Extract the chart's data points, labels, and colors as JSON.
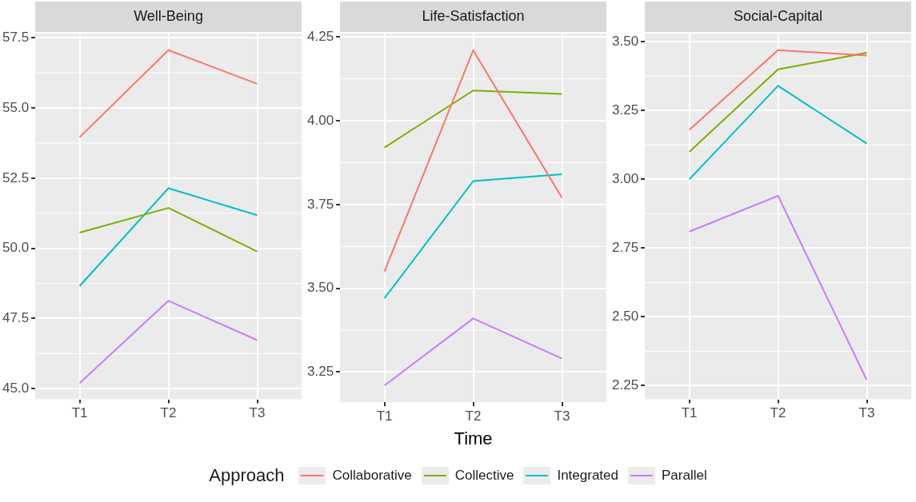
{
  "chart_data": [
    {
      "type": "line",
      "title": "Well-Being",
      "categories": [
        "T1",
        "T2",
        "T3"
      ],
      "ylim": [
        44.62,
        57.65
      ],
      "yticks": [
        {
          "value": 45,
          "label": "45.0"
        },
        {
          "value": 47.5,
          "label": "47.5"
        },
        {
          "value": 50,
          "label": "50.0"
        },
        {
          "value": 52.5,
          "label": "52.5"
        },
        {
          "value": 55,
          "label": "55.0"
        },
        {
          "value": 57.5,
          "label": "57.5"
        }
      ],
      "grid": true,
      "marker": "none",
      "legend": "bottom",
      "legend_title": "Approach",
      "series": [
        {
          "name": "Collaborative",
          "color": "#f8766d",
          "values": [
            53.96,
            57.06,
            55.86
          ]
        },
        {
          "name": "Collective",
          "color": "#7cae00",
          "values": [
            50.56,
            51.44,
            49.89
          ]
        },
        {
          "name": "Integrated",
          "color": "#00bfc4",
          "values": [
            48.66,
            52.14,
            51.18
          ]
        },
        {
          "name": "Parallel",
          "color": "#c77cff",
          "values": [
            45.2,
            48.13,
            46.73
          ]
        }
      ]
    },
    {
      "type": "line",
      "title": "Life-Satisfaction",
      "xlabel": "Time",
      "categories": [
        "T1",
        "T2",
        "T3"
      ],
      "ylim": [
        3.16,
        4.26
      ],
      "yticks": [
        {
          "value": 3.25,
          "label": "3.25"
        },
        {
          "value": 3.5,
          "label": "3.50"
        },
        {
          "value": 3.75,
          "label": "3.75"
        },
        {
          "value": 4,
          "label": "4.00"
        },
        {
          "value": 4.25,
          "label": "4.25"
        }
      ],
      "grid": true,
      "marker": "none",
      "series": [
        {
          "color": "#f8766d",
          "values": [
            3.55,
            4.21,
            3.77
          ]
        },
        {
          "color": "#7cae00",
          "values": [
            3.92,
            4.09,
            4.08
          ]
        },
        {
          "color": "#00bfc4",
          "values": [
            3.47,
            3.82,
            3.84
          ]
        },
        {
          "color": "#c77cff",
          "values": [
            3.21,
            3.41,
            3.29
          ]
        }
      ]
    },
    {
      "type": "line",
      "title": "Social-Capital",
      "categories": [
        "T1",
        "T2",
        "T3"
      ],
      "ylim": [
        2.2,
        3.53
      ],
      "yticks": [
        {
          "value": 2.25,
          "label": "2.25"
        },
        {
          "value": 2.5,
          "label": "2.50"
        },
        {
          "value": 2.75,
          "label": "2.75"
        },
        {
          "value": 3,
          "label": "3.00"
        },
        {
          "value": 3.25,
          "label": "3.25"
        },
        {
          "value": 3.5,
          "label": "3.50"
        }
      ],
      "grid": true,
      "marker": "none",
      "series": [
        {
          "color": "#f8766d",
          "values": [
            3.18,
            3.47,
            3.45
          ]
        },
        {
          "color": "#7cae00",
          "values": [
            3.1,
            3.4,
            3.46
          ]
        },
        {
          "color": "#00bfc4",
          "values": [
            3.0,
            3.34,
            3.13
          ]
        },
        {
          "color": "#c77cff",
          "values": [
            2.81,
            2.94,
            2.27
          ]
        }
      ]
    }
  ]
}
